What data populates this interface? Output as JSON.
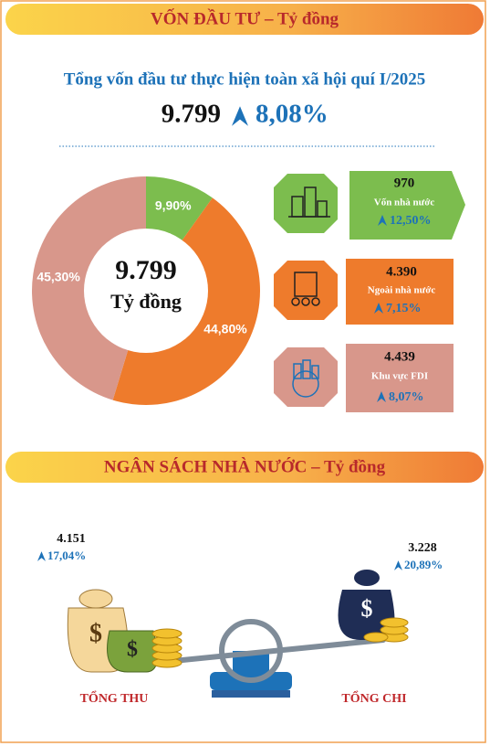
{
  "investment": {
    "header": "VỐN ĐẦU TƯ –  Tỷ đồng",
    "subtitle": "Tổng vốn đầu tư thực hiện toàn xã hội quí I/2025",
    "total": "9.799",
    "growth": "8,08%",
    "cards": [
      {
        "value": "970",
        "label": "Vốn nhà nước",
        "growth": "12,50%"
      },
      {
        "value": "4.390",
        "label": "Ngoài nhà nước",
        "growth": "7,15%"
      },
      {
        "value": "4.439",
        "label": "Khu vực FDI",
        "growth": "8,07%"
      }
    ]
  },
  "chart_data": {
    "type": "donut",
    "center_value": "9.799",
    "center_unit": "Tỷ đồng",
    "values": [
      9.9,
      44.8,
      45.3
    ],
    "value_labels": [
      "9,90%",
      "44,80%",
      "45,30%"
    ],
    "colors": [
      "#7cbd4e",
      "#ee7b2c",
      "#d8978b"
    ]
  },
  "budget": {
    "header": "NGÂN SÁCH NHÀ NƯỚC – Tỷ đồng",
    "revenue": {
      "value": "4.151",
      "growth": "17,04%",
      "label": "TỔNG THU"
    },
    "expenditure": {
      "value": "3.228",
      "growth": "20,89%",
      "label": "TỔNG CHI"
    }
  }
}
